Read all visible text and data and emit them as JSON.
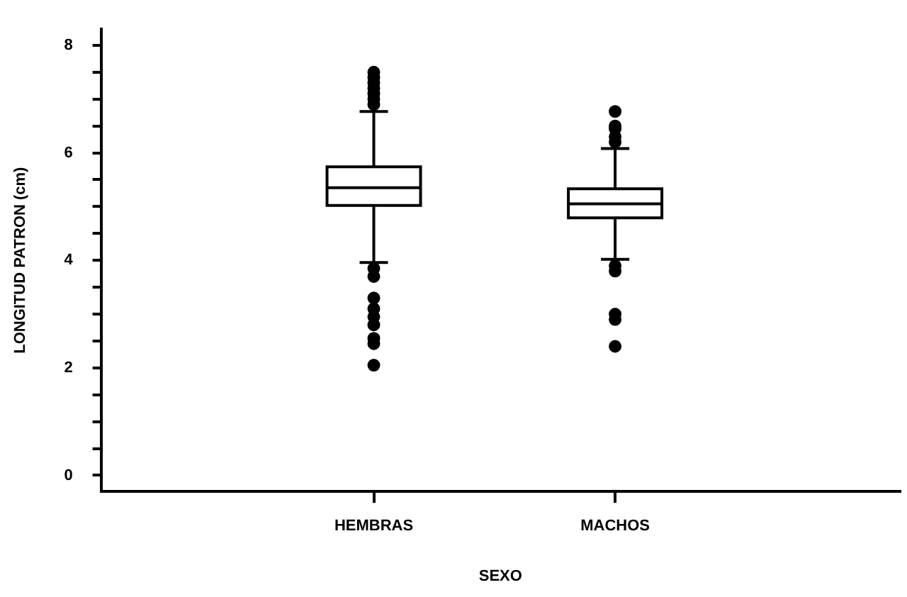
{
  "chart_data": {
    "type": "box",
    "xlabel": "SEXO",
    "ylabel": "LONGITUD PATRON (cm)",
    "categories": [
      "HEMBRAS",
      "MACHOS"
    ],
    "boxes": [
      {
        "low": 3.96,
        "q1": 5.02,
        "median": 5.35,
        "q3": 5.74,
        "high": 6.77,
        "outliers": [
          6.9,
          7.0,
          7.1,
          7.2,
          7.3,
          7.4,
          7.5,
          3.85,
          3.7,
          3.3,
          3.1,
          2.95,
          2.8,
          2.55,
          2.45,
          2.05
        ]
      },
      {
        "low": 4.02,
        "q1": 4.79,
        "median": 5.05,
        "q3": 5.33,
        "high": 6.08,
        "outliers": [
          6.2,
          6.3,
          6.45,
          6.5,
          6.77,
          3.9,
          3.8,
          3.0,
          2.9,
          2.4
        ]
      }
    ],
    "color": "#000000",
    "marker": "circle",
    "ylim": [
      -0.3,
      8.3
    ],
    "yticks": [
      0,
      {
        "value": 0.5,
        "label": null
      },
      {
        "value": 1,
        "label": null
      },
      {
        "value": 1.5,
        "label": null
      },
      2,
      {
        "value": 2.5,
        "label": null
      },
      {
        "value": 3,
        "label": null
      },
      {
        "value": 3.5,
        "label": null
      },
      4,
      {
        "value": 4.5,
        "label": null
      },
      {
        "value": 5,
        "label": null
      },
      {
        "value": 5.5,
        "label": null
      },
      6,
      {
        "value": 6.5,
        "label": null
      },
      {
        "value": 7,
        "label": null
      },
      {
        "value": 7.5,
        "label": null
      },
      8
    ],
    "grid": false,
    "legend": false
  }
}
